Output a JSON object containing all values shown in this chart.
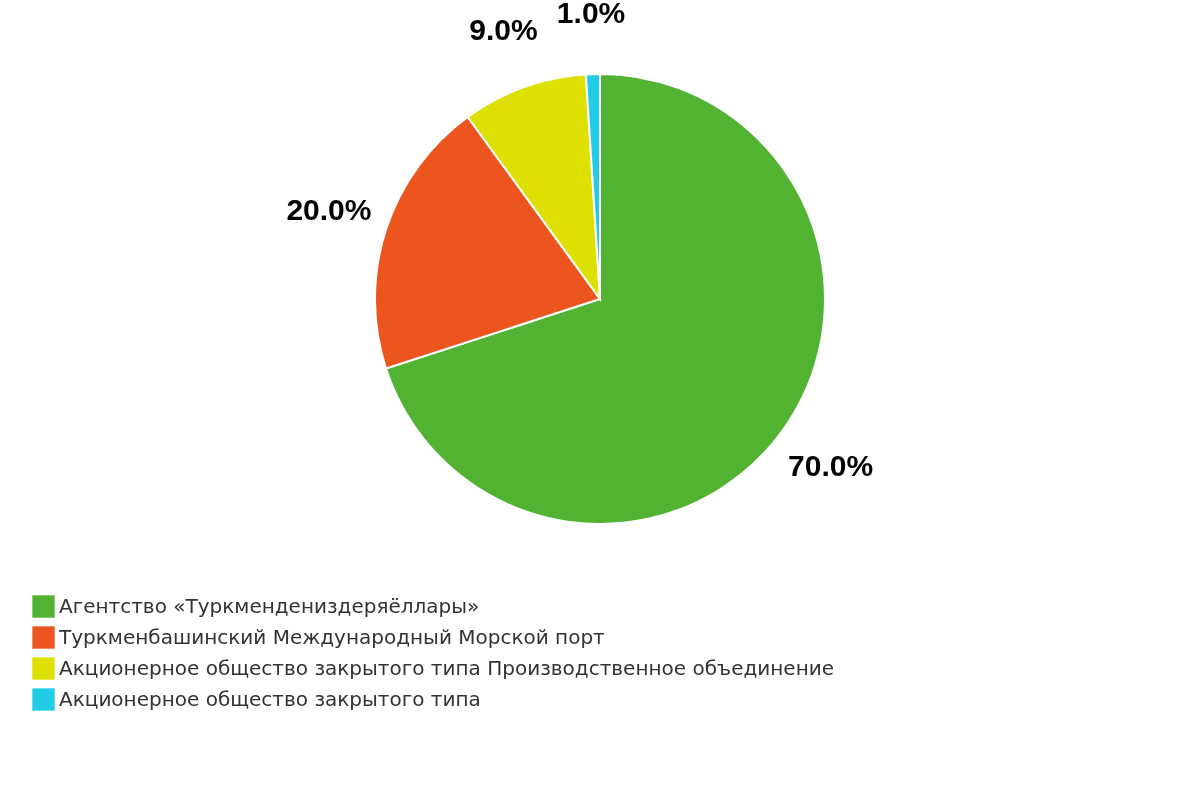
{
  "chart_data": {
    "type": "pie",
    "categories": [
      "Агентство «Туркмендениздеряёллары»",
      "Туркменбашинский Международный Морской порт",
      "Акционерное общество закрытого типа Производственное объединение",
      "Акционерное общество закрытого типа"
    ],
    "values": [
      70.0,
      20.0,
      9.0,
      1.0
    ],
    "colors": [
      "#52b232",
      "#ec561e",
      "#dde000",
      "#22cce5"
    ],
    "value_labels": [
      "70.0%",
      "20.0%",
      "9.0%",
      "1.0%"
    ],
    "legend": "bottom left"
  }
}
